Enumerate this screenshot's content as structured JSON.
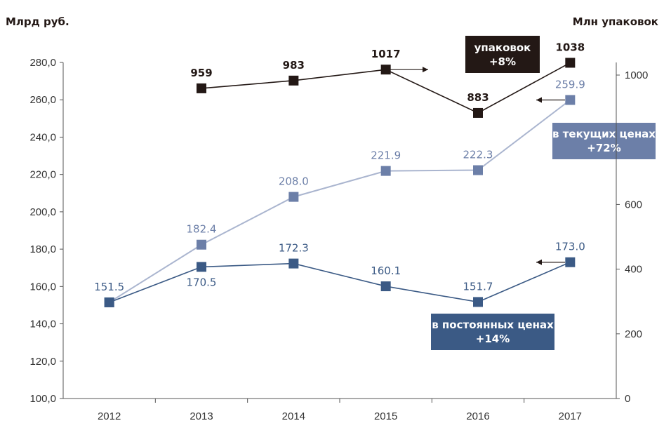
{
  "chart_data": {
    "type": "line",
    "categories": [
      "2012",
      "2013",
      "2014",
      "2015",
      "2016",
      "2017"
    ],
    "left_axis": {
      "label": "Млрд руб.",
      "ylim": [
        100,
        280
      ],
      "ticks": [
        "100,0",
        "120,0",
        "140,0",
        "160,0",
        "180,0",
        "200,0",
        "220,0",
        "240,0",
        "260,0",
        "280,0"
      ]
    },
    "right_axis": {
      "label": "Млн упаковок",
      "ylim": [
        0,
        1000
      ],
      "ticks": [
        "0",
        "200",
        "400",
        "600",
        "1000"
      ]
    },
    "series": [
      {
        "key": "packages",
        "axis": "right",
        "color": "#231815",
        "x": [
          "2013",
          "2014",
          "2015",
          "2016",
          "2017"
        ],
        "values": [
          959,
          983,
          1017,
          883,
          1038
        ],
        "labels": [
          "959",
          "983",
          "1017",
          "883",
          "1038"
        ]
      },
      {
        "key": "current",
        "axis": "left",
        "color": "#6c7fa8",
        "line_color": "#aab5cf",
        "x": [
          "2012",
          "2013",
          "2014",
          "2015",
          "2016",
          "2017"
        ],
        "values": [
          151.5,
          182.4,
          208.0,
          221.9,
          222.3,
          259.9
        ],
        "labels": [
          "",
          "182.4",
          "208.0",
          "221.9",
          "222.3",
          "259.9"
        ]
      },
      {
        "key": "constant",
        "axis": "left",
        "color": "#3b5a85",
        "line_color": "#3b5a85",
        "x": [
          "2012",
          "2013",
          "2014",
          "2015",
          "2016",
          "2017"
        ],
        "values": [
          151.5,
          170.5,
          172.3,
          160.1,
          151.7,
          173.0
        ],
        "labels": [
          "151.5",
          "170.5",
          "172.3",
          "160.1",
          "151.7",
          "173.0"
        ]
      }
    ],
    "callouts": [
      {
        "series": "packages",
        "line1": "упаковок",
        "line2": "+8%",
        "color": "#231815"
      },
      {
        "series": "current",
        "line1": "в текущих ценах",
        "line2": "+72%",
        "color": "#6c7fa8"
      },
      {
        "series": "constant",
        "line1": "в постоянных ценах",
        "line2": "+14%",
        "color": "#3b5a85"
      }
    ],
    "grid": false
  }
}
